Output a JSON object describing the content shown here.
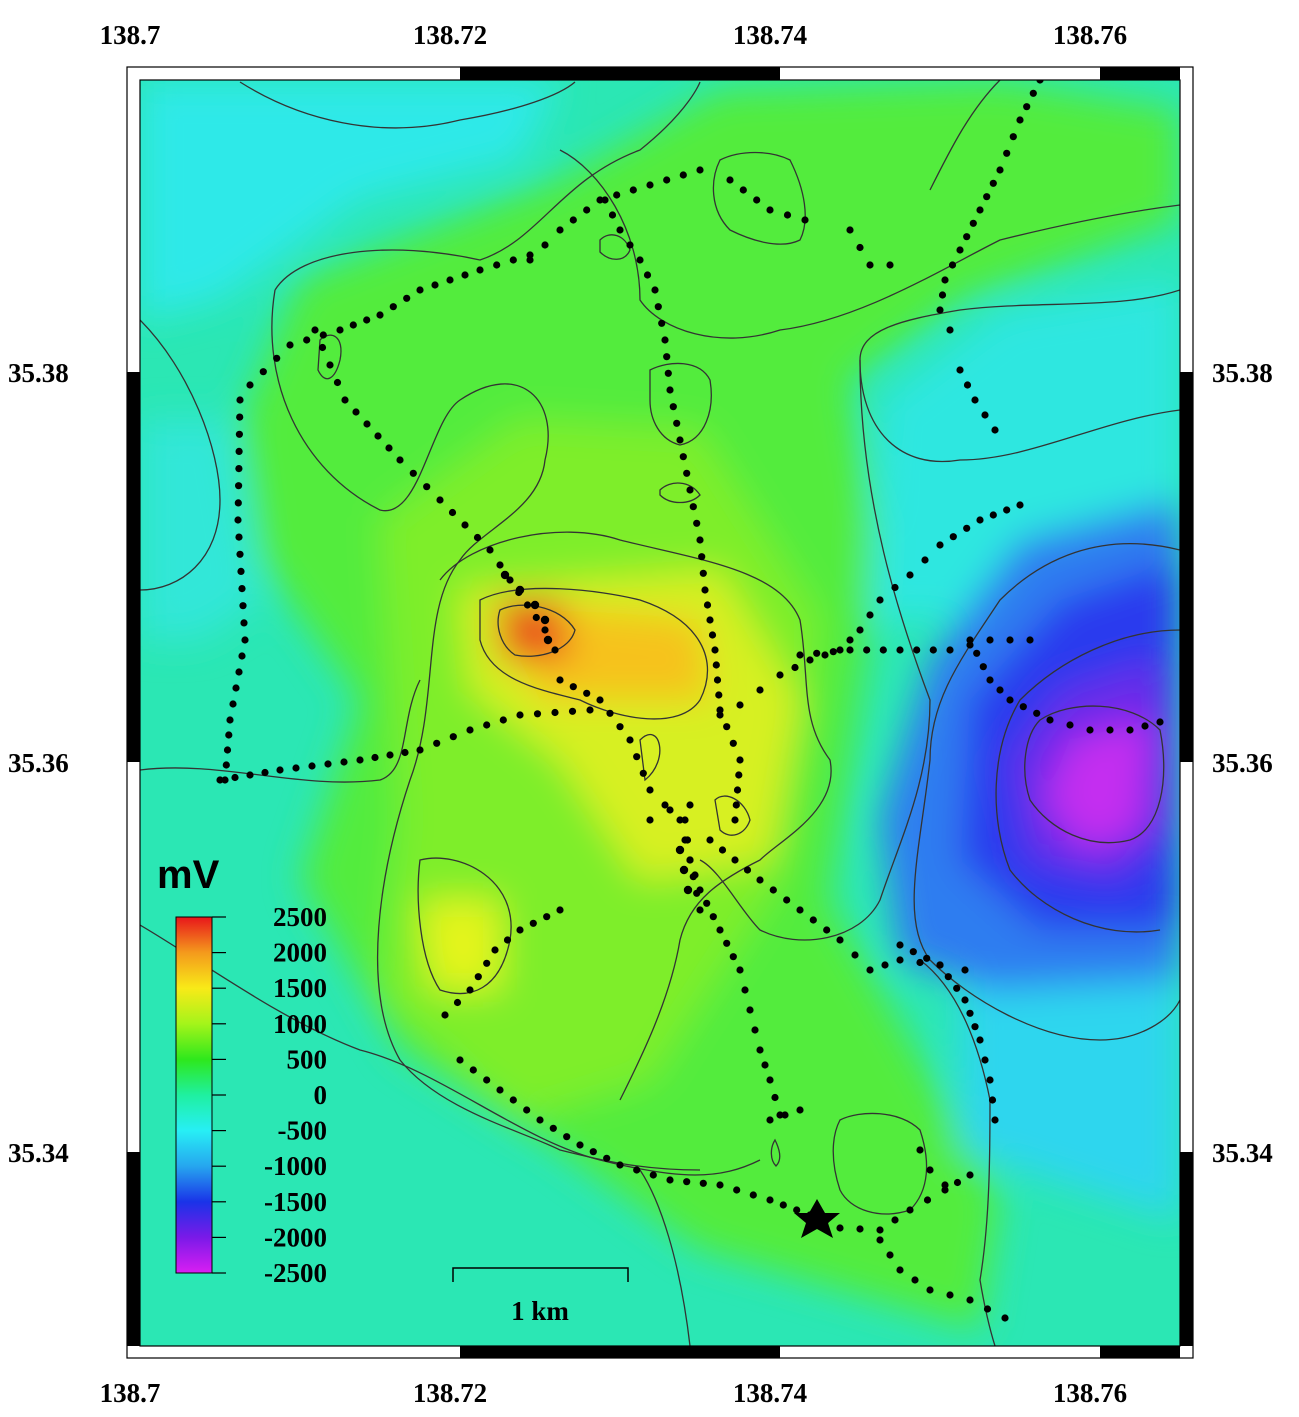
{
  "map": {
    "x_ticks": [
      "138.7",
      "138.72",
      "138.74",
      "138.76"
    ],
    "y_ticks": [
      "35.38",
      "35.36",
      "35.34"
    ],
    "x_range": [
      138.7,
      138.766
    ],
    "y_range": [
      35.3288,
      35.3935
    ],
    "colorbar": {
      "unit": "mV",
      "labels": [
        "2500",
        "2000",
        "1500",
        "1000",
        "500",
        "0",
        "-500",
        "-1000",
        "-1500",
        "-2000",
        "-2500"
      ],
      "colors": [
        "#e8161b",
        "#f49a1c",
        "#f8ea18",
        "#a4f41a",
        "#2ee81c",
        "#1ff0a0",
        "#27eff5",
        "#26a6ef",
        "#1a33e8",
        "#7a1ae8",
        "#d91ef2"
      ]
    },
    "scale_bar": {
      "label": "1 km"
    },
    "symbols": {
      "star": "star-icon",
      "observation_points": "dot"
    }
  }
}
